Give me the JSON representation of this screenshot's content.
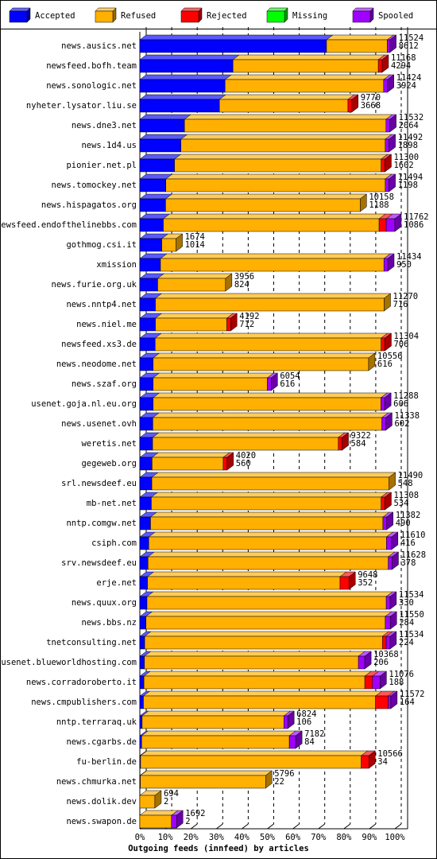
{
  "chart_data": {
    "type": "bar3d_stacked",
    "xlabel": "Outgoing feeds (innfeed) by articles",
    "categories": [
      "news.ausics.net",
      "newsfeed.bofh.team",
      "news.sonologic.net",
      "nyheter.lysator.liu.se",
      "news.dne3.net",
      "news.1d4.us",
      "pionier.net.pl",
      "news.tomockey.net",
      "news.hispagatos.org",
      "newsfeed.endofthelinebbs.com",
      "gothmog.csi.it",
      "xmission",
      "news.furie.org.uk",
      "news.nntp4.net",
      "news.niel.me",
      "newsfeed.xs3.de",
      "news.neodome.net",
      "news.szaf.org",
      "usenet.goja.nl.eu.org",
      "news.usenet.ovh",
      "weretis.net",
      "gegeweb.org",
      "srl.newsdeef.eu",
      "mb-net.net",
      "nntp.comgw.net",
      "csiph.com",
      "srv.newsdeef.eu",
      "erje.net",
      "news.quux.org",
      "news.bbs.nz",
      "tnetconsulting.net",
      "usenet.blueworldhosting.com",
      "news.corradoroberto.it",
      "news.cmpublishers.com",
      "nntp.terraraq.uk",
      "news.cgarbs.de",
      "fu-berlin.de",
      "news.chmurka.net",
      "news.dolik.dev",
      "news.swapon.de"
    ],
    "bar_labels": [
      [
        11524,
        8612
      ],
      [
        11168,
        4294
      ],
      [
        11424,
        3924
      ],
      [
        9770,
        3668
      ],
      [
        11532,
        2064
      ],
      [
        11492,
        1898
      ],
      [
        11300,
        1602
      ],
      [
        11494,
        1198
      ],
      [
        10158,
        1188
      ],
      [
        11762,
        1086
      ],
      [
        1674,
        1014
      ],
      [
        11434,
        950
      ],
      [
        3956,
        824
      ],
      [
        11270,
        716
      ],
      [
        4192,
        712
      ],
      [
        11304,
        706
      ],
      [
        10556,
        616
      ],
      [
        6054,
        616
      ],
      [
        11288,
        606
      ],
      [
        11338,
        602
      ],
      [
        9322,
        584
      ],
      [
        4020,
        560
      ],
      [
        11490,
        548
      ],
      [
        11308,
        534
      ],
      [
        11382,
        490
      ],
      [
        11610,
        416
      ],
      [
        11628,
        378
      ],
      [
        9648,
        352
      ],
      [
        11534,
        330
      ],
      [
        11550,
        284
      ],
      [
        11534,
        224
      ],
      [
        10368,
        206
      ],
      [
        11076,
        188
      ],
      [
        11572,
        164
      ],
      [
        6824,
        106
      ],
      [
        7182,
        84
      ],
      [
        10566,
        34
      ],
      [
        5796,
        22
      ],
      [
        694,
        2
      ],
      [
        1692,
        2
      ]
    ],
    "series": [
      {
        "name": "Accepted",
        "color": "#0000ff",
        "values": [
          73.2,
          36.5,
          33.4,
          31.2,
          17.5,
          16.1,
          13.6,
          10.2,
          10.1,
          9.2,
          8.6,
          8.1,
          7.0,
          6.1,
          6.1,
          6.0,
          5.2,
          5.2,
          5.2,
          5.1,
          5.0,
          4.8,
          4.7,
          4.5,
          4.2,
          3.5,
          3.2,
          3.0,
          2.8,
          2.4,
          1.9,
          1.8,
          1.6,
          1.4,
          0.9,
          0.7,
          0.3,
          0.2,
          0.0,
          0.0
        ]
      },
      {
        "name": "Refused",
        "color": "#ffb000",
        "values": [
          23.8,
          57.0,
          62.2,
          50.4,
          79.0,
          80.1,
          81.0,
          86.0,
          76.3,
          84.6,
          5.6,
          87.6,
          26.6,
          89.7,
          28.0,
          88.6,
          84.5,
          44.8,
          89.3,
          89.8,
          72.8,
          27.9,
          93.0,
          90.1,
          91.1,
          93.2,
          94.2,
          75.5,
          93.8,
          93.8,
          93.2,
          83.9,
          86.6,
          91.0,
          55.6,
          57.9,
          86.5,
          49.1,
          5.9,
          12.4
        ]
      },
      {
        "name": "Rejected",
        "color": "#ff0000",
        "values": [
          0,
          1.5,
          0,
          1.5,
          0,
          0,
          1.5,
          0,
          0,
          2.8,
          0,
          0,
          0,
          0,
          1.5,
          1.5,
          0,
          0,
          0,
          0,
          1.5,
          1.5,
          0,
          1.5,
          0,
          0,
          0,
          3.5,
          0,
          0,
          1.5,
          0,
          3.0,
          5.0,
          0,
          0,
          3.0,
          0,
          0,
          0
        ]
      },
      {
        "name": "Missing",
        "color": "#00ff00",
        "values": [
          0,
          0,
          0,
          0,
          0,
          0,
          0,
          0,
          0,
          0,
          0,
          0,
          0,
          0,
          0,
          0,
          0,
          0,
          0,
          0,
          0,
          0,
          0,
          0,
          0,
          0,
          0,
          0,
          0,
          0,
          0,
          0,
          0,
          0,
          0,
          0,
          0,
          0,
          0,
          0
        ]
      },
      {
        "name": "Spooled",
        "color": "#a000ff",
        "values": [
          1.0,
          0,
          1.5,
          0,
          1.5,
          1.5,
          0,
          1.5,
          0,
          3.4,
          0,
          1.5,
          0,
          0,
          0,
          0,
          0,
          1.5,
          1.5,
          1.5,
          0,
          0,
          0,
          0,
          1.5,
          2.0,
          1.5,
          0,
          1.5,
          2.0,
          1.5,
          2.5,
          3.0,
          1.0,
          1.5,
          2.5,
          0,
          0,
          0,
          2.0
        ]
      }
    ],
    "xlim": [
      0,
      100
    ],
    "xticks": [
      {
        "value": 0,
        "label": "0%"
      },
      {
        "value": 10,
        "label": "10%"
      },
      {
        "value": 20,
        "label": "20%"
      },
      {
        "value": 30,
        "label": "30%"
      },
      {
        "value": 40,
        "label": "40%"
      },
      {
        "value": 50,
        "label": "50%"
      },
      {
        "value": 60,
        "label": "60%"
      },
      {
        "value": 70,
        "label": "70%"
      },
      {
        "value": 80,
        "label": "80%"
      },
      {
        "value": 90,
        "label": "90%"
      },
      {
        "value": 100,
        "label": "100%"
      }
    ],
    "grid": true
  }
}
